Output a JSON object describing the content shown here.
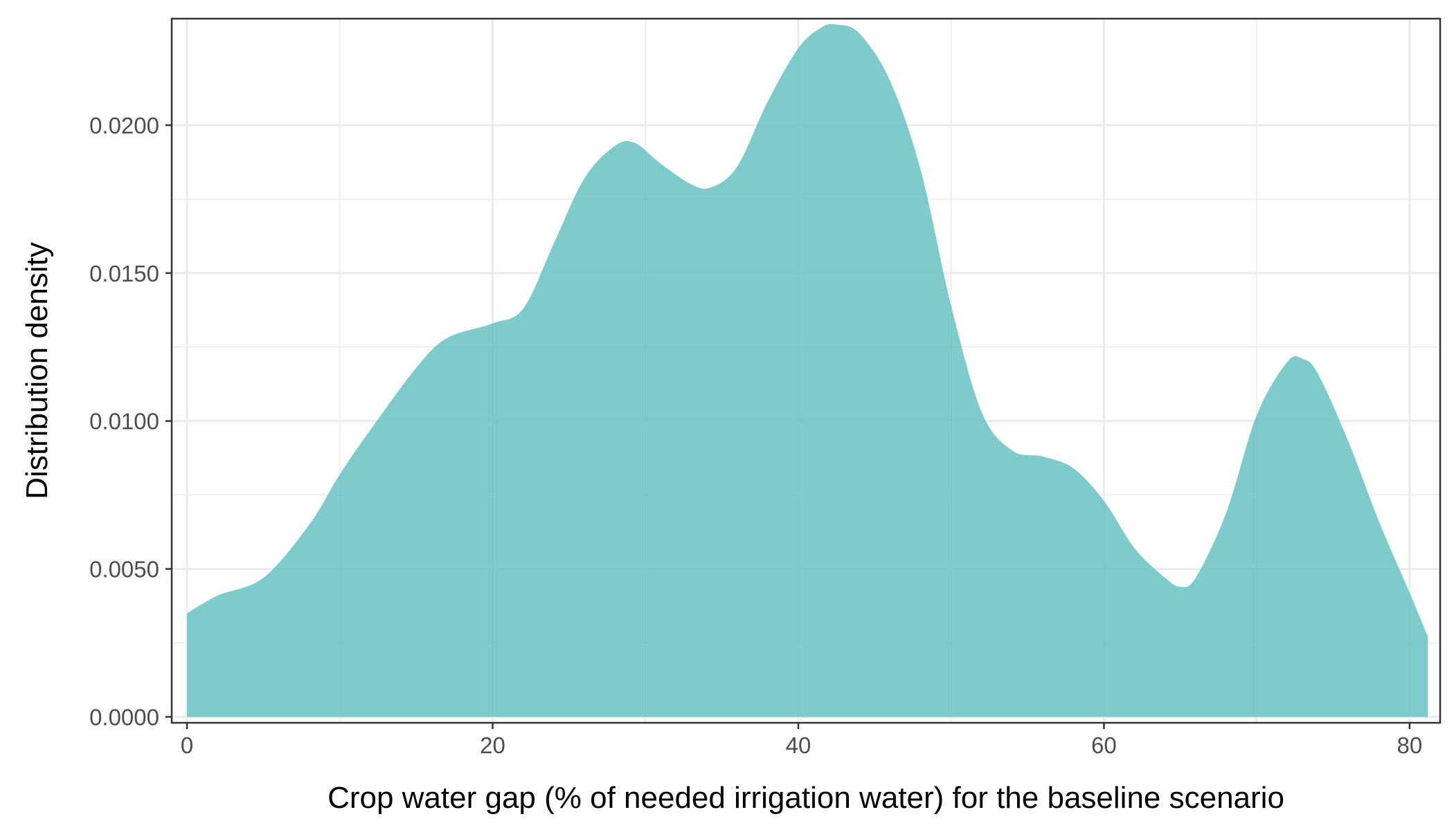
{
  "chart_data": {
    "type": "area",
    "title": "",
    "xlabel": "Crop water gap (% of needed irrigation water) for the baseline scenario",
    "ylabel": "Distribution density",
    "xlim": [
      -1,
      82
    ],
    "ylim": [
      -0.0002,
      0.0236
    ],
    "x_ticks": [
      0,
      20,
      40,
      60,
      80
    ],
    "x_tick_labels": [
      "0",
      "20",
      "40",
      "60",
      "80"
    ],
    "y_ticks": [
      0.0,
      0.005,
      0.01,
      0.015,
      0.02
    ],
    "y_tick_labels": [
      "0.0000",
      "0.0050",
      "0.0100",
      "0.0150",
      "0.0200"
    ],
    "grid": true,
    "legend": "none",
    "colors": {
      "fill": "#66c2c2",
      "fill_opacity": 0.85,
      "grid": "#ebebeb",
      "border": "#333333"
    },
    "series": [
      {
        "x": [
          0,
          2,
          5,
          8,
          10,
          12,
          15,
          17,
          20,
          22,
          24,
          26,
          28,
          29.3,
          31,
          33,
          34.3,
          36,
          38,
          40,
          41.5,
          42.5,
          44,
          46,
          48,
          50,
          52,
          54,
          56,
          58,
          60,
          62,
          64,
          65,
          66,
          68,
          70,
          72,
          73,
          74,
          76,
          78,
          80,
          81.2
        ],
        "y": [
          0.0035,
          0.0041,
          0.0047,
          0.0065,
          0.0082,
          0.0097,
          0.0118,
          0.0128,
          0.0133,
          0.0138,
          0.016,
          0.0182,
          0.0193,
          0.0194,
          0.0187,
          0.018,
          0.0179,
          0.0186,
          0.0208,
          0.0226,
          0.0233,
          0.0234,
          0.0231,
          0.0215,
          0.0185,
          0.0139,
          0.0103,
          0.009,
          0.0088,
          0.0084,
          0.0073,
          0.0057,
          0.0047,
          0.0044,
          0.0047,
          0.0069,
          0.0102,
          0.012,
          0.0121,
          0.0116,
          0.0093,
          0.0066,
          0.0042,
          0.0027
        ]
      }
    ]
  }
}
